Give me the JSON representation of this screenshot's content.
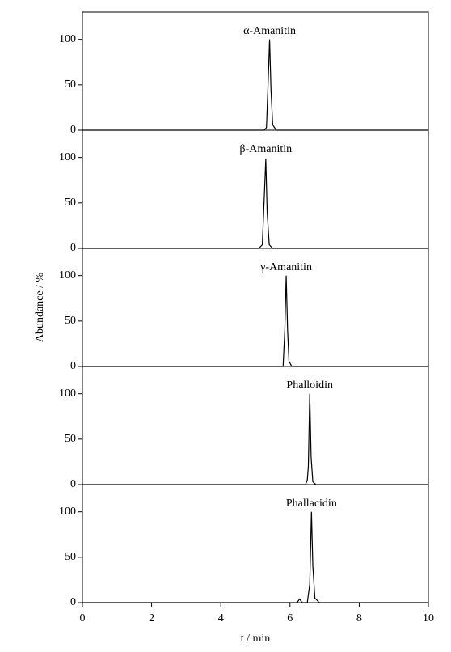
{
  "chart_data": [
    {
      "type": "line",
      "title": "α-Amanitin",
      "ylabel": "Abundance / %",
      "x": [
        0,
        5.25,
        5.32,
        5.37,
        5.41,
        5.45,
        5.5,
        5.6,
        10
      ],
      "series": [
        {
          "color": "#000000",
          "values": [
            0,
            0,
            3,
            55,
            100,
            45,
            6,
            0,
            0
          ]
        }
      ],
      "xlim": [
        0,
        10
      ],
      "ylim": [
        0,
        130
      ],
      "yticks": [
        0,
        50,
        100
      ]
    },
    {
      "type": "line",
      "title": "β-Amanitin",
      "x": [
        0,
        5.1,
        5.15,
        5.2,
        5.26,
        5.3,
        5.34,
        5.4,
        5.5,
        10
      ],
      "series": [
        {
          "color": "#000000",
          "values": [
            0,
            0,
            2,
            4,
            60,
            98,
            40,
            4,
            0,
            0
          ]
        }
      ],
      "xlim": [
        0,
        10
      ],
      "ylim": [
        0,
        130
      ],
      "yticks": [
        0,
        50,
        100
      ]
    },
    {
      "type": "line",
      "title": "γ-Amanitin",
      "x": [
        0,
        5.8,
        5.85,
        5.89,
        5.93,
        5.97,
        6.05,
        10
      ],
      "series": [
        {
          "color": "#000000",
          "values": [
            0,
            0,
            40,
            100,
            40,
            6,
            0,
            0
          ]
        }
      ],
      "xlim": [
        0,
        10
      ],
      "ylim": [
        0,
        130
      ],
      "yticks": [
        0,
        50,
        100
      ]
    },
    {
      "type": "line",
      "title": "Phalloidin",
      "x": [
        0,
        6.45,
        6.5,
        6.53,
        6.57,
        6.61,
        6.66,
        6.75,
        10
      ],
      "series": [
        {
          "color": "#000000",
          "values": [
            0,
            0,
            5,
            20,
            100,
            30,
            3,
            0,
            0
          ]
        }
      ],
      "xlim": [
        0,
        10
      ],
      "ylim": [
        0,
        130
      ],
      "yticks": [
        0,
        50,
        100
      ]
    },
    {
      "type": "line",
      "title": "Phallacidin",
      "xlabel": "t / min",
      "x": [
        0,
        6.2,
        6.28,
        6.35,
        6.5,
        6.57,
        6.62,
        6.66,
        6.72,
        6.85,
        10
      ],
      "series": [
        {
          "color": "#000000",
          "values": [
            0,
            0,
            4,
            0,
            0,
            20,
            100,
            40,
            5,
            0,
            0
          ]
        }
      ],
      "xlim": [
        0,
        10
      ],
      "ylim": [
        0,
        130
      ],
      "yticks": [
        0,
        50,
        100
      ],
      "xticks": [
        0,
        2,
        4,
        6,
        8,
        10
      ]
    }
  ]
}
